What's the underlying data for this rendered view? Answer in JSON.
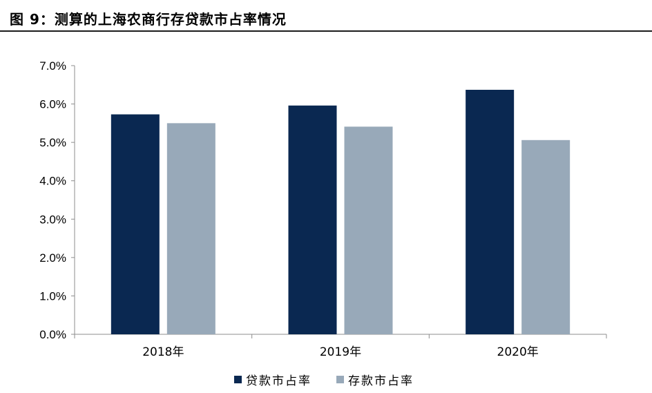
{
  "figure": {
    "title": "图 9：测算的上海农商行存贷款市占率情况"
  },
  "chart_data": {
    "type": "bar",
    "title": "测算的上海农商行存贷款市占率情况",
    "categories": [
      "2018年",
      "2019年",
      "2020年"
    ],
    "series": [
      {
        "name": "贷款市占率",
        "color": "#0a2851",
        "values": [
          5.73,
          5.96,
          6.37
        ]
      },
      {
        "name": "存款市占率",
        "color": "#98a9b9",
        "values": [
          5.5,
          5.41,
          5.06
        ]
      }
    ],
    "ylim": [
      0,
      7
    ],
    "yticks": [
      0,
      1,
      2,
      3,
      4,
      5,
      6,
      7
    ],
    "ytick_labels": [
      "0.0%",
      "1.0%",
      "2.0%",
      "3.0%",
      "4.0%",
      "5.0%",
      "6.0%",
      "7.0%"
    ],
    "xlabel": "",
    "ylabel": "",
    "grid": false,
    "legend_position": "bottom-center"
  }
}
